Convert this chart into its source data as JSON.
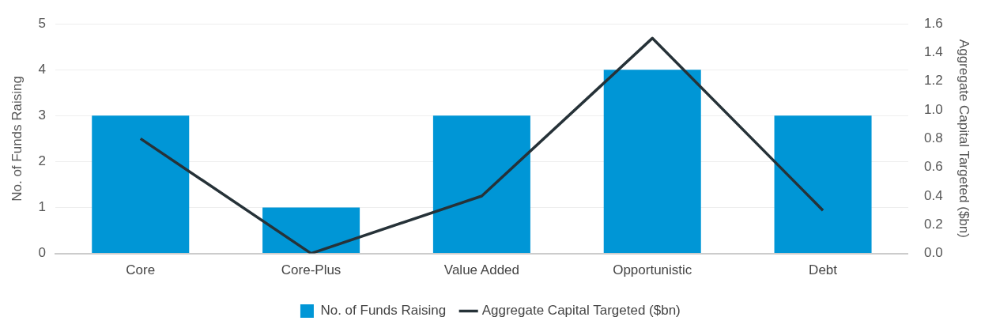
{
  "chart_data": {
    "type": "bar",
    "categories": [
      "Core",
      "Core-Plus",
      "Value Added",
      "Opportunistic",
      "Debt"
    ],
    "series": [
      {
        "name": "No. of Funds Raising",
        "color": "#0096d6",
        "values": [
          3,
          1,
          3,
          4,
          3
        ]
      },
      {
        "name": "Aggregate Capital Targeted ($bn)",
        "type": "line",
        "axis": "y2",
        "color": "#263238",
        "values": [
          0.8,
          0.0,
          0.4,
          1.5,
          0.3
        ]
      }
    ],
    "ylabel": "No. of Funds Raising",
    "y2label": "Aggregate Capital Targeted ($bn)",
    "ylim": [
      0,
      5
    ],
    "yticks": [
      0,
      1,
      2,
      3,
      4,
      5
    ],
    "y2lim": [
      0,
      1.6
    ],
    "y2ticks": [
      {
        "value": 0,
        "label": "0.0"
      },
      {
        "value": 0.2,
        "label": "0.2"
      },
      {
        "value": 0.4,
        "label": "0.4"
      },
      {
        "value": 0.6,
        "label": "0.6"
      },
      {
        "value": 0.8,
        "label": "0.8"
      },
      {
        "value": 1.0,
        "label": "1.0"
      },
      {
        "value": 1.2,
        "label": "1.2"
      },
      {
        "value": 1.4,
        "label": "1.4"
      },
      {
        "value": 1.6,
        "label": "1.6"
      }
    ],
    "grid": "y",
    "legend": "bottom",
    "marker": "none",
    "line_style": "solid"
  }
}
